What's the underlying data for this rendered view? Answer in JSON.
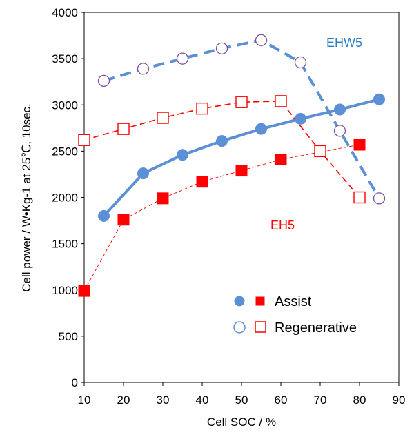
{
  "chart_data": {
    "type": "line",
    "title": "",
    "xlabel": "Cell SOC / %",
    "ylabel": "Cell power / W•Kg-1 at 25℃, 10sec.",
    "xlim": [
      10,
      90
    ],
    "ylim": [
      0,
      4000
    ],
    "xticks": [
      10,
      20,
      30,
      40,
      50,
      60,
      70,
      80,
      90
    ],
    "yticks": [
      0,
      500,
      1000,
      1500,
      2000,
      2500,
      3000,
      3500,
      4000
    ],
    "grid": false,
    "series": [
      {
        "name": "EHW5 Regenerative",
        "product": "EHW5",
        "mode": "Regenerative",
        "color": "#5b8fd6",
        "marker": "circle-open",
        "line": "dashed-thick",
        "x": [
          15,
          25,
          35,
          45,
          55,
          65,
          75,
          85
        ],
        "y": [
          3260,
          3390,
          3500,
          3610,
          3700,
          3460,
          2720,
          1990
        ]
      },
      {
        "name": "EHW5 Assist",
        "product": "EHW5",
        "mode": "Assist",
        "color": "#5b8fd6",
        "marker": "circle-filled",
        "line": "solid-thick",
        "x": [
          15,
          25,
          35,
          45,
          55,
          65,
          75,
          85
        ],
        "y": [
          1800,
          2260,
          2460,
          2610,
          2740,
          2850,
          2950,
          3060
        ]
      },
      {
        "name": "EH5 Regenerative",
        "product": "EH5",
        "mode": "Regenerative",
        "color": "#ff0000",
        "marker": "square-open",
        "line": "dashed",
        "x": [
          10,
          20,
          30,
          40,
          50,
          60,
          70,
          80
        ],
        "y": [
          2620,
          2740,
          2860,
          2960,
          3030,
          3040,
          2500,
          2000
        ]
      },
      {
        "name": "EH5 Assist",
        "product": "EH5",
        "mode": "Assist",
        "color": "#ff0000",
        "marker": "square-filled",
        "line": "dashed-thin",
        "x": [
          10,
          20,
          30,
          40,
          50,
          60,
          80
        ],
        "y": [
          990,
          1760,
          1990,
          2170,
          2290,
          2410,
          2570
        ]
      }
    ],
    "annotations": [
      {
        "text": "EHW5",
        "color": "#2e7fc4"
      },
      {
        "text": "EH5",
        "color": "#ff0000"
      }
    ],
    "legend": {
      "placement": "bottom-right",
      "items": [
        {
          "label": "Assist",
          "markers": [
            "circle-filled",
            "square-filled"
          ]
        },
        {
          "label": "Regenerative",
          "markers": [
            "circle-open",
            "square-open"
          ]
        }
      ]
    }
  }
}
